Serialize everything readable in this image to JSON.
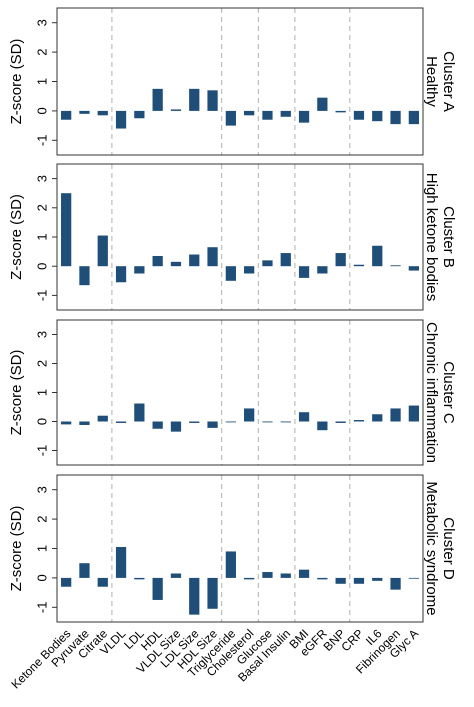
{
  "chart_data": {
    "type": "bar",
    "bar_color": "#1f4e79",
    "separator_color": "#b0b0b0",
    "ylabel": "Z-score (SD)",
    "ylim": [
      -1.5,
      3.5
    ],
    "yticks": [
      -1,
      0,
      1,
      2,
      3
    ],
    "grid": false,
    "categories": [
      "Ketone Bodies",
      "Pyruvate",
      "Citrate",
      "VLDL",
      "LDL",
      "HDL",
      "VLDL Size",
      "LDL Size",
      "HDL Size",
      "Triglyceride",
      "Cholesterol",
      "Glucose",
      "Basal Insulin",
      "BMI",
      "eGFR",
      "BNP",
      "CRP",
      "IL6",
      "Fibrinogen",
      "Glyc A"
    ],
    "group_separators_after_index": [
      2,
      8,
      10,
      12,
      15
    ],
    "panels": [
      {
        "label_line1": "Cluster A",
        "label_line2": "Healthy",
        "values": [
          -0.3,
          -0.1,
          -0.15,
          -0.6,
          -0.25,
          0.75,
          0.05,
          0.75,
          0.7,
          -0.5,
          -0.15,
          -0.3,
          -0.2,
          -0.4,
          0.45,
          -0.05,
          -0.3,
          -0.35,
          -0.45,
          -0.45
        ]
      },
      {
        "label_line1": "Cluster B",
        "label_line2": "High ketone bodies",
        "values": [
          2.5,
          -0.65,
          1.05,
          -0.55,
          -0.25,
          0.35,
          0.15,
          0.4,
          0.65,
          -0.5,
          -0.25,
          0.2,
          0.45,
          -0.4,
          -0.25,
          0.45,
          0.05,
          0.7,
          0.03,
          -0.15
        ]
      },
      {
        "label_line1": "Cluster C",
        "label_line2": "Chronic inflammation",
        "values": [
          -0.1,
          -0.12,
          0.2,
          -0.05,
          0.62,
          -0.25,
          -0.35,
          -0.05,
          -0.22,
          -0.03,
          0.45,
          -0.03,
          -0.03,
          0.32,
          -0.3,
          -0.05,
          0.05,
          0.25,
          0.45,
          0.55
        ]
      },
      {
        "label_line1": "Cluster D",
        "label_line2": "Metabolic syndrome",
        "values": [
          -0.3,
          0.5,
          -0.3,
          1.05,
          -0.05,
          -0.75,
          0.15,
          -1.25,
          -1.05,
          0.9,
          -0.05,
          0.2,
          0.15,
          0.28,
          -0.05,
          -0.2,
          -0.2,
          -0.1,
          -0.4,
          -0.02
        ]
      }
    ]
  }
}
